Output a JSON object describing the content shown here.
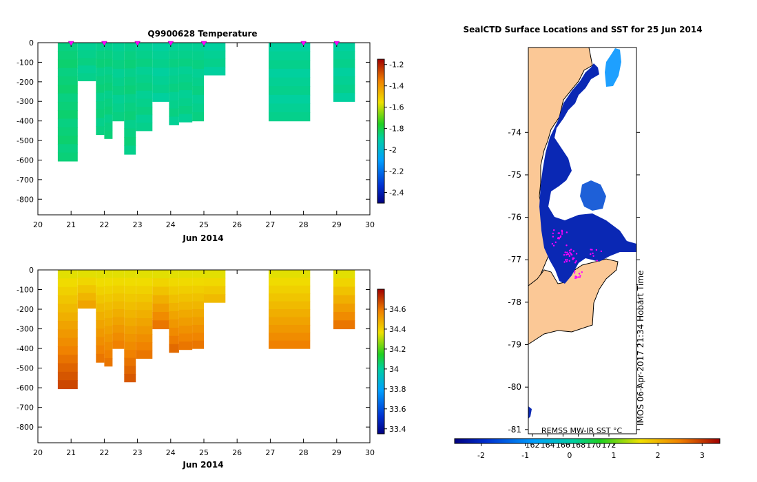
{
  "chart_data": [
    {
      "type": "heatmap",
      "title": "Q9900628  Temperature",
      "xlabel": "Jun 2014",
      "ylabel": "",
      "xlim": [
        20,
        30
      ],
      "ylim": [
        -880,
        0
      ],
      "xticks": [
        20,
        21,
        22,
        23,
        24,
        25,
        26,
        27,
        28,
        29,
        30
      ],
      "yticks": [
        0,
        -100,
        -200,
        -300,
        -400,
        -500,
        -600,
        -700,
        -800
      ],
      "profile_markers_x": [
        21.0,
        22.0,
        23.0,
        24.0,
        25.0,
        28.0,
        29.0
      ],
      "profiles": [
        {
          "x0": 20.6,
          "x1": 21.2,
          "depth": -605,
          "value": -1.85
        },
        {
          "x0": 21.2,
          "x1": 21.75,
          "depth": -195,
          "value": -1.87
        },
        {
          "x0": 21.75,
          "x1": 22.0,
          "depth": -470,
          "value": -1.86
        },
        {
          "x0": 22.0,
          "x1": 22.25,
          "depth": -490,
          "value": -1.86
        },
        {
          "x0": 22.25,
          "x1": 22.6,
          "depth": -400,
          "value": -1.87
        },
        {
          "x0": 22.6,
          "x1": 22.95,
          "depth": -570,
          "value": -1.86
        },
        {
          "x0": 22.95,
          "x1": 23.45,
          "depth": -450,
          "value": -1.87
        },
        {
          "x0": 23.45,
          "x1": 23.95,
          "depth": -300,
          "value": -1.88
        },
        {
          "x0": 23.95,
          "x1": 24.25,
          "depth": -420,
          "value": -1.87
        },
        {
          "x0": 24.25,
          "x1": 24.65,
          "depth": -405,
          "value": -1.87
        },
        {
          "x0": 24.65,
          "x1": 25.0,
          "depth": -400,
          "value": -1.87
        },
        {
          "x0": 25.0,
          "x1": 25.65,
          "depth": -165,
          "value": -1.88
        },
        {
          "x0": 26.95,
          "x1": 28.2,
          "depth": -400,
          "value": -1.88
        },
        {
          "x0": 28.9,
          "x1": 29.55,
          "depth": -300,
          "value": -1.88
        }
      ],
      "colorbar": {
        "min": -2.5,
        "max": -1.15,
        "ticks": [
          -1.2,
          -1.4,
          -1.6,
          -1.8,
          -2,
          -2.2,
          -2.4
        ],
        "tick_labels": [
          "-1.2",
          "-1.4",
          "-1.6",
          "-1.8",
          "-2",
          "-2.2",
          "-2.4"
        ]
      }
    },
    {
      "type": "heatmap",
      "title": "",
      "xlabel": "Jun 2014",
      "ylabel": "",
      "xlim": [
        20,
        30
      ],
      "ylim": [
        -880,
        0
      ],
      "xticks": [
        20,
        21,
        22,
        23,
        24,
        25,
        26,
        27,
        28,
        29,
        30
      ],
      "yticks": [
        0,
        -100,
        -200,
        -300,
        -400,
        -500,
        -600,
        -700,
        -800
      ],
      "surface_value": 34.35,
      "profiles": [
        {
          "x0": 20.6,
          "x1": 21.2,
          "depth": -605,
          "bottom_value": 34.68
        },
        {
          "x0": 21.2,
          "x1": 21.75,
          "depth": -195,
          "bottom_value": 34.5
        },
        {
          "x0": 21.75,
          "x1": 22.0,
          "depth": -470,
          "bottom_value": 34.6
        },
        {
          "x0": 22.0,
          "x1": 22.25,
          "depth": -490,
          "bottom_value": 34.6
        },
        {
          "x0": 22.25,
          "x1": 22.6,
          "depth": -400,
          "bottom_value": 34.58
        },
        {
          "x0": 22.6,
          "x1": 22.95,
          "depth": -570,
          "bottom_value": 34.65
        },
        {
          "x0": 22.95,
          "x1": 23.45,
          "depth": -450,
          "bottom_value": 34.6
        },
        {
          "x0": 23.45,
          "x1": 23.95,
          "depth": -300,
          "bottom_value": 34.6
        },
        {
          "x0": 23.95,
          "x1": 24.25,
          "depth": -420,
          "bottom_value": 34.62
        },
        {
          "x0": 24.25,
          "x1": 24.65,
          "depth": -405,
          "bottom_value": 34.6
        },
        {
          "x0": 24.65,
          "x1": 25.0,
          "depth": -400,
          "bottom_value": 34.6
        },
        {
          "x0": 25.0,
          "x1": 25.65,
          "depth": -165,
          "bottom_value": 34.45
        },
        {
          "x0": 26.95,
          "x1": 28.2,
          "depth": -400,
          "bottom_value": 34.58
        },
        {
          "x0": 28.9,
          "x1": 29.55,
          "depth": -300,
          "bottom_value": 34.6
        }
      ],
      "colorbar": {
        "min": 33.35,
        "max": 34.8,
        "ticks": [
          34.6,
          34.4,
          34.2,
          34,
          33.8,
          33.6,
          33.4
        ],
        "tick_labels": [
          "34.6",
          "34.4",
          "34.2",
          "34",
          "33.8",
          "33.6",
          "33.4"
        ]
      }
    },
    {
      "type": "map",
      "title": "SealCTD Surface Locations and SST for 25 Jun 2014",
      "ylim": [
        -81.1,
        -72.0
      ],
      "yticks": [
        -74,
        -75,
        -76,
        -77,
        -78,
        -79,
        -80,
        -81
      ],
      "xticks_bottom": [
        162,
        164,
        166,
        168,
        170,
        172
      ],
      "credit": "REMSS MW-IR SST °C",
      "timestamp": "IMOS 06-Apr-2017 21:34 Hobart Time",
      "colorbar": {
        "min": -2.6,
        "max": 3.4,
        "ticks": [
          -2,
          -1,
          0,
          1,
          2,
          3
        ],
        "tick_labels": [
          "-2",
          "-1",
          "0",
          "1",
          "2",
          "3"
        ]
      }
    }
  ]
}
